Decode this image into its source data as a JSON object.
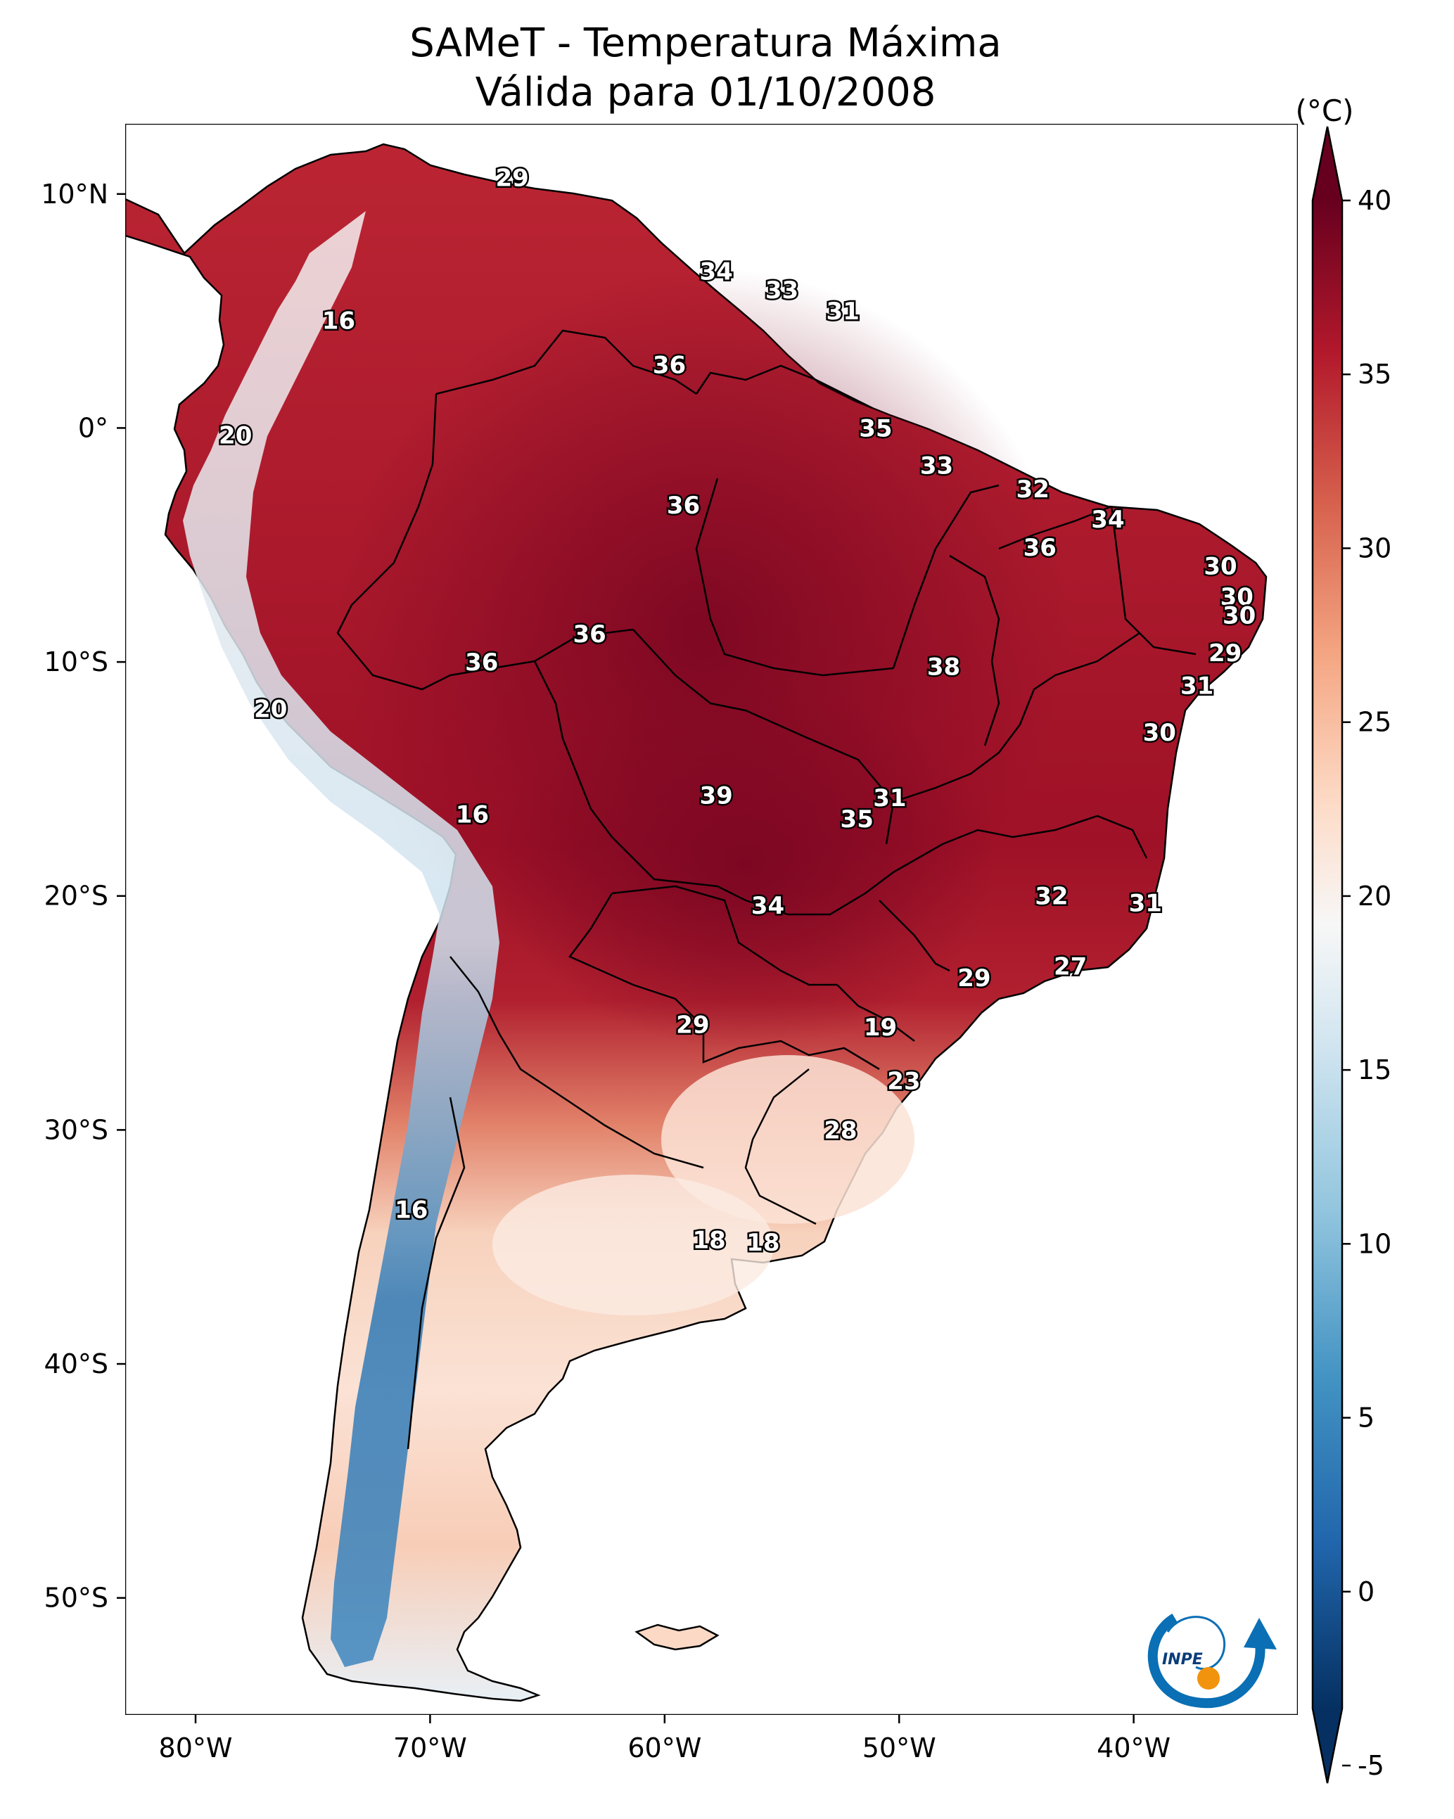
{
  "title": {
    "line1": "SAMeT - Temperatura Máxima",
    "line2": "Válida para 01/10/2008"
  },
  "map": {
    "lon_range": [
      -83,
      -33
    ],
    "lat_range": [
      -55,
      13
    ],
    "lon_ticks": [
      {
        "value": -80,
        "label": "80°W"
      },
      {
        "value": -70,
        "label": "70°W"
      },
      {
        "value": -60,
        "label": "60°W"
      },
      {
        "value": -50,
        "label": "50°W"
      },
      {
        "value": -40,
        "label": "40°W"
      }
    ],
    "lat_ticks": [
      {
        "value": 10,
        "label": "10°N"
      },
      {
        "value": 0,
        "label": "0°"
      },
      {
        "value": -10,
        "label": "10°S"
      },
      {
        "value": -20,
        "label": "20°S"
      },
      {
        "value": -30,
        "label": "30°S"
      },
      {
        "value": -40,
        "label": "40°S"
      },
      {
        "value": -50,
        "label": "50°S"
      }
    ],
    "labels": [
      {
        "lon": -66.5,
        "lat": 10.7,
        "text": "29"
      },
      {
        "lon": -57.8,
        "lat": 6.7,
        "text": "34"
      },
      {
        "lon": -55.0,
        "lat": 5.9,
        "text": "33"
      },
      {
        "lon": -52.4,
        "lat": 5.0,
        "text": "31"
      },
      {
        "lon": -73.9,
        "lat": 4.6,
        "text": "16"
      },
      {
        "lon": -59.8,
        "lat": 2.7,
        "text": "36"
      },
      {
        "lon": -51.0,
        "lat": 0.0,
        "text": "35"
      },
      {
        "lon": -78.3,
        "lat": -0.3,
        "text": "20"
      },
      {
        "lon": -48.4,
        "lat": -1.6,
        "text": "33"
      },
      {
        "lon": -59.2,
        "lat": -3.3,
        "text": "36"
      },
      {
        "lon": -44.3,
        "lat": -2.6,
        "text": "32"
      },
      {
        "lon": -41.1,
        "lat": -3.9,
        "text": "34"
      },
      {
        "lon": -44.0,
        "lat": -5.1,
        "text": "36"
      },
      {
        "lon": -36.3,
        "lat": -5.9,
        "text": "30"
      },
      {
        "lon": -35.6,
        "lat": -7.2,
        "text": "30"
      },
      {
        "lon": -35.5,
        "lat": -8.0,
        "text": "30"
      },
      {
        "lon": -36.1,
        "lat": -9.6,
        "text": "29"
      },
      {
        "lon": -63.2,
        "lat": -8.8,
        "text": "36"
      },
      {
        "lon": -67.8,
        "lat": -10.0,
        "text": "36"
      },
      {
        "lon": -48.1,
        "lat": -10.2,
        "text": "38"
      },
      {
        "lon": -37.3,
        "lat": -11.0,
        "text": "31"
      },
      {
        "lon": -76.8,
        "lat": -12.0,
        "text": "20"
      },
      {
        "lon": -38.9,
        "lat": -13.0,
        "text": "30"
      },
      {
        "lon": -57.8,
        "lat": -15.7,
        "text": "39"
      },
      {
        "lon": -50.4,
        "lat": -15.8,
        "text": "31"
      },
      {
        "lon": -51.8,
        "lat": -16.7,
        "text": "35"
      },
      {
        "lon": -68.2,
        "lat": -16.5,
        "text": "16"
      },
      {
        "lon": -43.5,
        "lat": -20.0,
        "text": "32"
      },
      {
        "lon": -39.5,
        "lat": -20.3,
        "text": "31"
      },
      {
        "lon": -55.6,
        "lat": -20.4,
        "text": "34"
      },
      {
        "lon": -42.7,
        "lat": -23.0,
        "text": "27"
      },
      {
        "lon": -46.8,
        "lat": -23.5,
        "text": "29"
      },
      {
        "lon": -58.8,
        "lat": -25.5,
        "text": "29"
      },
      {
        "lon": -50.8,
        "lat": -25.6,
        "text": "19"
      },
      {
        "lon": -49.8,
        "lat": -27.9,
        "text": "23"
      },
      {
        "lon": -52.5,
        "lat": -30.0,
        "text": "28"
      },
      {
        "lon": -70.8,
        "lat": -33.4,
        "text": "16"
      },
      {
        "lon": -58.1,
        "lat": -34.7,
        "text": "18"
      },
      {
        "lon": -55.8,
        "lat": -34.8,
        "text": "18"
      }
    ]
  },
  "colorbar": {
    "unit": "(°C)",
    "min": -5,
    "max": 40,
    "ticks": [
      {
        "value": 40,
        "label": "40"
      },
      {
        "value": 35,
        "label": "35"
      },
      {
        "value": 30,
        "label": "30"
      },
      {
        "value": 25,
        "label": "25"
      },
      {
        "value": 20,
        "label": "20"
      },
      {
        "value": 15,
        "label": "15"
      },
      {
        "value": 10,
        "label": "10"
      },
      {
        "value": 5,
        "label": "5"
      },
      {
        "value": 0,
        "label": "0"
      },
      {
        "value": -5,
        "label": "-5"
      }
    ],
    "colors": {
      "top_arrow": "#67001f",
      "bottom_arrow": "#053061"
    }
  },
  "logo": {
    "text": "INPE",
    "colors": {
      "blue": "#0a6fb4",
      "orange": "#f2930d"
    }
  }
}
